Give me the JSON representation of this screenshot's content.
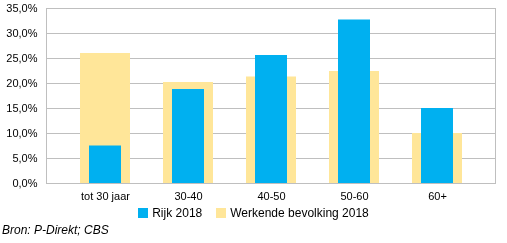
{
  "chart_data": {
    "type": "bar",
    "categories": [
      "tot 30 jaar",
      "30-40",
      "40-50",
      "50-60",
      "60+"
    ],
    "series": [
      {
        "name": "Rijk 2018",
        "color": "#00b0f0",
        "values": [
          7.5,
          18.8,
          25.6,
          32.7,
          15.0
        ]
      },
      {
        "name": "Werkende bevolking 2018",
        "color": "#ffe699",
        "values": [
          26.0,
          20.2,
          21.3,
          22.4,
          10.0
        ]
      }
    ],
    "ylim": [
      0,
      35
    ],
    "yticks": [
      {
        "value": 0,
        "label": "0,0%"
      },
      {
        "value": 5,
        "label": "5,0%"
      },
      {
        "value": 10,
        "label": "10,0%"
      },
      {
        "value": 15,
        "label": "15,0%"
      },
      {
        "value": 20,
        "label": "20,0%"
      },
      {
        "value": 25,
        "label": "25,0%"
      },
      {
        "value": 30,
        "label": "30,0%"
      },
      {
        "value": 35,
        "label": "35,0%"
      }
    ],
    "grid": true,
    "legend": "bottom",
    "source": "Bron: P-Direkt; CBS"
  }
}
